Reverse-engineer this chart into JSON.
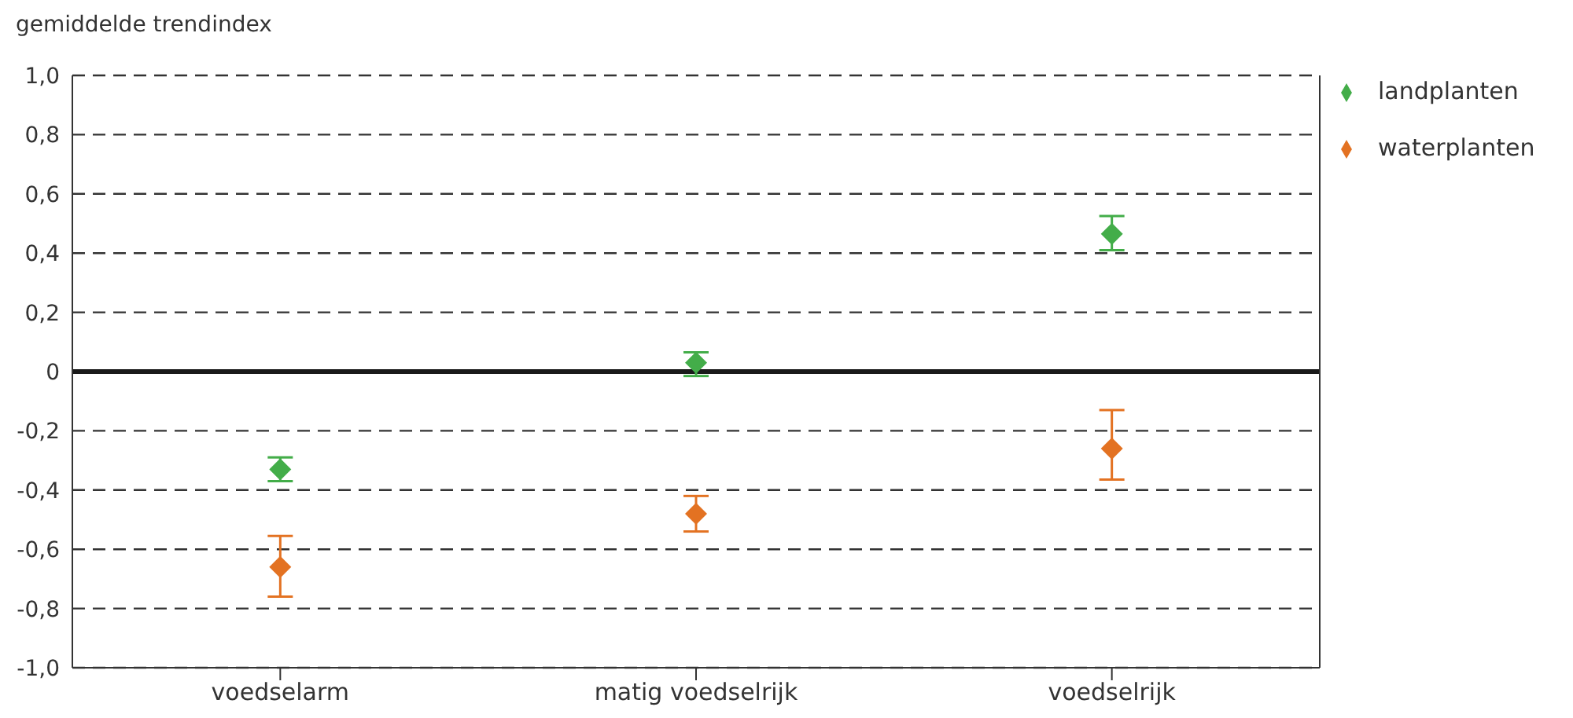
{
  "chart_data": {
    "type": "scatter",
    "ylabel": "gemiddelde trendindex",
    "categories": [
      "voedselarm",
      "matig voedselrijk",
      "voedselrijk"
    ],
    "series": [
      {
        "name": "landplanten",
        "color": "#43ad49",
        "values": [
          -0.33,
          0.03,
          0.465
        ],
        "errors": [
          [
            -0.37,
            -0.29
          ],
          [
            -0.015,
            0.065
          ],
          [
            0.41,
            0.525
          ]
        ]
      },
      {
        "name": "waterplanten",
        "color": "#e37222",
        "values": [
          -0.66,
          -0.48,
          -0.26
        ],
        "errors": [
          [
            -0.76,
            -0.555
          ],
          [
            -0.54,
            -0.42
          ],
          [
            -0.365,
            -0.13
          ]
        ]
      }
    ],
    "ylim": [
      -1,
      1
    ],
    "yticks": [
      {
        "value": -1,
        "label": "-1,0"
      },
      {
        "value": -0.8,
        "label": "-0,8"
      },
      {
        "value": -0.6,
        "label": "-0,6"
      },
      {
        "value": -0.4,
        "label": "-0,4"
      },
      {
        "value": -0.2,
        "label": "-0,2"
      },
      0,
      {
        "value": 0.2,
        "label": "0,2"
      },
      {
        "value": 0.4,
        "label": "0,4"
      },
      {
        "value": 0.6,
        "label": "0,6"
      },
      {
        "value": 0.8,
        "label": "0,8"
      },
      {
        "value": 1,
        "label": "1,0"
      }
    ],
    "ref_lines": [
      {
        "axis": "y",
        "value": 0,
        "color": "#1a1a1a"
      }
    ],
    "grid": "y",
    "legend": "top right",
    "marker": "diamond"
  }
}
